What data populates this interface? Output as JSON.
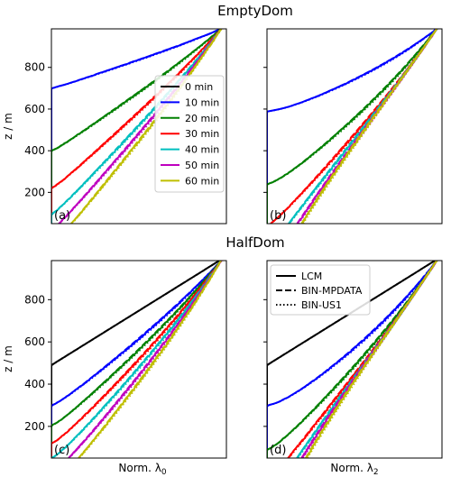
{
  "sections": [
    {
      "title": "EmptyDom"
    },
    {
      "title": "HalfDom"
    }
  ],
  "axes": {
    "ylabel": "z / m",
    "xlabel_left": "Norm. λ",
    "xlabel_left_sub": "0",
    "xlabel_right": "Norm. λ",
    "xlabel_right_sub": "2",
    "yticks": [
      200,
      400,
      600,
      800
    ],
    "ylim": [
      50,
      985
    ]
  },
  "time_legend": [
    {
      "label": "0  min",
      "color": "#000000"
    },
    {
      "label": "10 min",
      "color": "#0000ff"
    },
    {
      "label": "20 min",
      "color": "#008000"
    },
    {
      "label": "30 min",
      "color": "#ff0000"
    },
    {
      "label": "40 min",
      "color": "#00bfbf"
    },
    {
      "label": "50 min",
      "color": "#bf00bf"
    },
    {
      "label": "60 min",
      "color": "#bfbf00"
    }
  ],
  "style_legend": [
    {
      "label": "LCM",
      "dash": "solid"
    },
    {
      "label": "BIN-MPDATA",
      "dash": "dashed"
    },
    {
      "label": "BIN-US1",
      "dash": "dotted"
    }
  ],
  "chart_data": [
    {
      "type": "line",
      "panel": "(a)",
      "domain": "EmptyDom",
      "moment": "λ0",
      "series": [
        {
          "time": "10 min",
          "color": "#0000ff",
          "z_mid": 755,
          "z_low": 700,
          "shape": 0.52
        },
        {
          "time": "20 min",
          "color": "#008000",
          "z_mid": 560,
          "z_low": 400,
          "shape": 0.52
        },
        {
          "time": "30 min",
          "color": "#ff0000",
          "z_mid": 420,
          "z_low": 220,
          "shape": 0.52
        },
        {
          "time": "40 min",
          "color": "#00bfbf",
          "z_mid": 330,
          "z_low": 95,
          "shape": 0.52
        },
        {
          "time": "50 min",
          "color": "#bf00bf",
          "z_mid": 270,
          "z_low": 20,
          "shape": 0.52
        },
        {
          "time": "60 min",
          "color": "#bfbf00",
          "z_mid": 210,
          "z_low": -50,
          "shape": 0.52
        }
      ]
    },
    {
      "type": "line",
      "panel": "(b)",
      "domain": "EmptyDom",
      "moment": "λ2",
      "series": [
        {
          "time": "10 min",
          "color": "#0000ff",
          "z_mid": 620,
          "z_low": 590,
          "shape": 0.85
        },
        {
          "time": "20 min",
          "color": "#008000",
          "z_mid": 380,
          "z_low": 240,
          "shape": 0.72
        },
        {
          "time": "30 min",
          "color": "#ff0000",
          "z_mid": 250,
          "z_low": 40,
          "shape": 0.58
        },
        {
          "time": "40 min",
          "color": "#00bfbf",
          "z_mid": 170,
          "z_low": -80,
          "shape": 0.42
        },
        {
          "time": "50 min",
          "color": "#bf00bf",
          "z_mid": 120,
          "z_low": -180,
          "shape": 0.3
        },
        {
          "time": "60 min",
          "color": "#bfbf00",
          "z_mid": 90,
          "z_low": -260,
          "shape": 0.18
        }
      ]
    },
    {
      "type": "line",
      "panel": "(c)",
      "domain": "HalfDom",
      "moment": "λ0",
      "series": [
        {
          "time": "0  min",
          "color": "#000000",
          "linear": true,
          "z_low": 490
        },
        {
          "time": "10 min",
          "color": "#0000ff",
          "z_mid": 480,
          "z_low": 300,
          "shape": 0.6
        },
        {
          "time": "20 min",
          "color": "#008000",
          "z_mid": 400,
          "z_low": 205,
          "shape": 0.6
        },
        {
          "time": "30 min",
          "color": "#ff0000",
          "z_mid": 340,
          "z_low": 120,
          "shape": 0.6
        },
        {
          "time": "40 min",
          "color": "#00bfbf",
          "z_mid": 290,
          "z_low": 50,
          "shape": 0.6
        },
        {
          "time": "50 min",
          "color": "#bf00bf",
          "z_mid": 255,
          "z_low": -20,
          "shape": 0.6
        },
        {
          "time": "60 min",
          "color": "#bfbf00",
          "z_mid": 225,
          "z_low": -80,
          "shape": 0.6
        }
      ]
    },
    {
      "type": "line",
      "panel": "(d)",
      "domain": "HalfDom",
      "moment": "λ2",
      "series": [
        {
          "time": "0  min",
          "color": "#000000",
          "linear": true,
          "z_low": 490
        },
        {
          "time": "10 min",
          "color": "#0000ff",
          "z_mid": 420,
          "z_low": 300,
          "shape": 0.82
        },
        {
          "time": "20 min",
          "color": "#008000",
          "z_mid": 285,
          "z_low": 90,
          "shape": 0.66
        },
        {
          "time": "30 min",
          "color": "#ff0000",
          "z_mid": 210,
          "z_low": -60,
          "shape": 0.5
        },
        {
          "time": "40 min",
          "color": "#00bfbf",
          "z_mid": 160,
          "z_low": -160,
          "shape": 0.36
        },
        {
          "time": "50 min",
          "color": "#bf00bf",
          "z_mid": 130,
          "z_low": -240,
          "shape": 0.24
        },
        {
          "time": "60 min",
          "color": "#bfbf00",
          "z_mid": 105,
          "z_low": -320,
          "shape": 0.14
        }
      ]
    }
  ]
}
